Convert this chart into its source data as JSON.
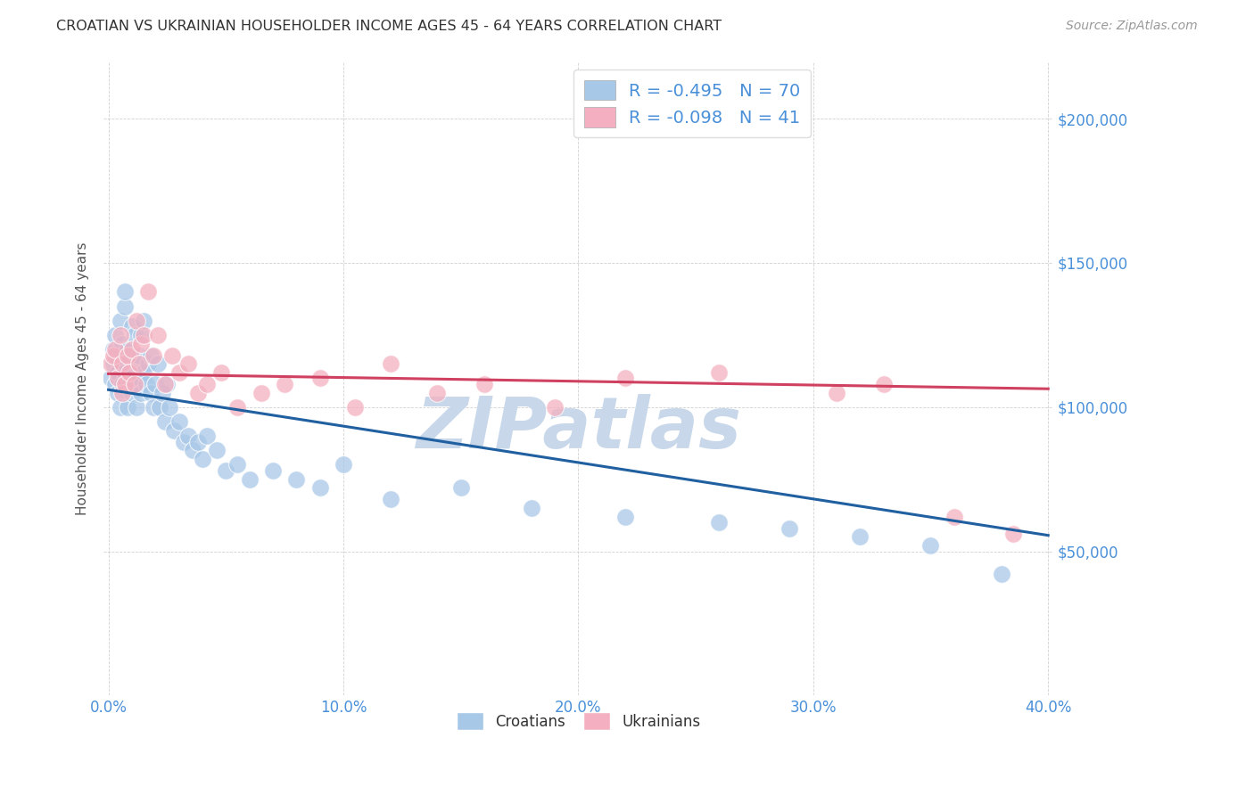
{
  "title": "CROATIAN VS UKRAINIAN HOUSEHOLDER INCOME AGES 45 - 64 YEARS CORRELATION CHART",
  "source": "Source: ZipAtlas.com",
  "ylabel": "Householder Income Ages 45 - 64 years",
  "legend_croatians": "Croatians",
  "legend_ukrainians": "Ukrainians",
  "r_croatian": -0.495,
  "n_croatian": 70,
  "r_ukrainian": -0.098,
  "n_ukrainian": 41,
  "xlim": [
    -0.002,
    0.402
  ],
  "ylim": [
    0,
    220000
  ],
  "yticks": [
    0,
    50000,
    100000,
    150000,
    200000
  ],
  "ytick_labels": [
    "",
    "$50,000",
    "$100,000",
    "$150,000",
    "$200,000"
  ],
  "xtick_labels": [
    "0.0%",
    "10.0%",
    "20.0%",
    "30.0%",
    "40.0%"
  ],
  "xticks": [
    0.0,
    0.1,
    0.2,
    0.3,
    0.4
  ],
  "croatian_color": "#a8c8e8",
  "ukrainian_color": "#f4b0c0",
  "trend_croatian_color": "#2060a0",
  "trend_ukrainian_color": "#d04060",
  "watermark_color": "#c8d8ea",
  "title_color": "#333333",
  "axis_label_color": "#555555",
  "tick_label_color": "#4a90d9",
  "legend_text_color": "#4a90d9",
  "background_color": "#ffffff",
  "croatian_x": [
    0.001,
    0.002,
    0.002,
    0.003,
    0.003,
    0.003,
    0.004,
    0.004,
    0.005,
    0.005,
    0.005,
    0.006,
    0.006,
    0.006,
    0.007,
    0.007,
    0.007,
    0.008,
    0.008,
    0.009,
    0.009,
    0.01,
    0.01,
    0.011,
    0.011,
    0.012,
    0.012,
    0.013,
    0.013,
    0.014,
    0.014,
    0.015,
    0.015,
    0.016,
    0.017,
    0.018,
    0.018,
    0.019,
    0.02,
    0.021,
    0.022,
    0.023,
    0.024,
    0.025,
    0.026,
    0.028,
    0.03,
    0.032,
    0.034,
    0.036,
    0.038,
    0.04,
    0.042,
    0.046,
    0.05,
    0.055,
    0.06,
    0.07,
    0.08,
    0.09,
    0.1,
    0.12,
    0.15,
    0.18,
    0.22,
    0.26,
    0.29,
    0.32,
    0.35,
    0.38
  ],
  "croatian_y": [
    110000,
    120000,
    115000,
    118000,
    125000,
    108000,
    112000,
    105000,
    130000,
    118000,
    100000,
    122000,
    108000,
    115000,
    135000,
    140000,
    112000,
    120000,
    100000,
    110000,
    118000,
    128000,
    105000,
    125000,
    108000,
    115000,
    100000,
    118000,
    110000,
    125000,
    105000,
    130000,
    112000,
    108000,
    115000,
    105000,
    118000,
    100000,
    108000,
    115000,
    100000,
    105000,
    95000,
    108000,
    100000,
    92000,
    95000,
    88000,
    90000,
    85000,
    88000,
    82000,
    90000,
    85000,
    78000,
    80000,
    75000,
    78000,
    75000,
    72000,
    80000,
    68000,
    72000,
    65000,
    62000,
    60000,
    58000,
    55000,
    52000,
    42000
  ],
  "ukrainian_x": [
    0.001,
    0.002,
    0.003,
    0.004,
    0.005,
    0.006,
    0.006,
    0.007,
    0.008,
    0.009,
    0.01,
    0.011,
    0.012,
    0.013,
    0.014,
    0.015,
    0.017,
    0.019,
    0.021,
    0.024,
    0.027,
    0.03,
    0.034,
    0.038,
    0.042,
    0.048,
    0.055,
    0.065,
    0.075,
    0.09,
    0.105,
    0.12,
    0.14,
    0.16,
    0.19,
    0.22,
    0.26,
    0.31,
    0.33,
    0.36,
    0.385
  ],
  "ukrainian_y": [
    115000,
    118000,
    120000,
    110000,
    125000,
    105000,
    115000,
    108000,
    118000,
    112000,
    120000,
    108000,
    130000,
    115000,
    122000,
    125000,
    140000,
    118000,
    125000,
    108000,
    118000,
    112000,
    115000,
    105000,
    108000,
    112000,
    100000,
    105000,
    108000,
    110000,
    100000,
    115000,
    105000,
    108000,
    100000,
    110000,
    112000,
    105000,
    108000,
    62000,
    56000
  ]
}
